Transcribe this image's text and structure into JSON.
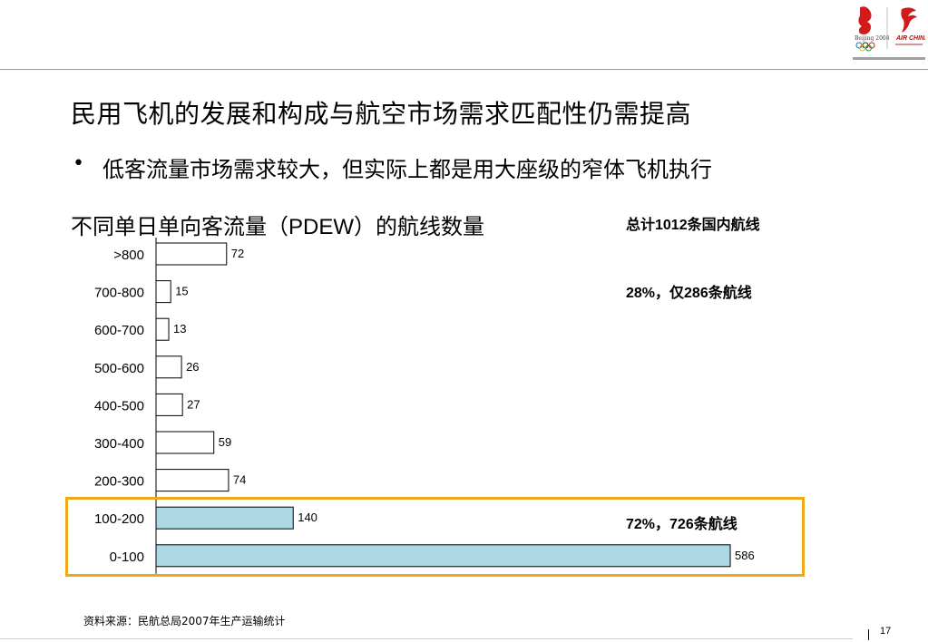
{
  "slide": {
    "title": "民用飞机的发展和构成与航空市场需求匹配性仍需提高",
    "bullet": "低客流量市场需求较大，但实际上都是用大座级的窄体飞机执行",
    "chart_title_prefix": "不同单日单向客流量（",
    "chart_title_abbr": "PDEW",
    "chart_title_suffix": "）的航线数量",
    "note_total": "总计1012条国内航线",
    "note_28": "28%，仅286条航线",
    "note_72": "72%，726条航线",
    "source": "资料来源：民航总局2007年生产运输统计",
    "page_number": "17",
    "logos": {
      "left_logo": "beijing-2008-olympic-emblem",
      "left_logo_text": "Beijing 2008",
      "right_logo": "air-china-phoenix-logo",
      "right_logo_text": "AIR CHINA"
    }
  },
  "chart_data": {
    "type": "bar",
    "orientation": "horizontal",
    "categories": [
      ">800",
      "700-800",
      "600-700",
      "500-600",
      "400-500",
      "300-400",
      "200-300",
      "100-200",
      "0-100"
    ],
    "values": [
      72,
      15,
      13,
      26,
      27,
      59,
      74,
      140,
      586
    ],
    "highlighted_categories": [
      "100-200",
      "0-100"
    ],
    "colors": {
      "default_fill": "#ffffff",
      "highlight_fill": "#add8e6",
      "bar_stroke": "#000000",
      "highlight_box": "#f0a818"
    },
    "title": "不同单日单向客流量（PDEW）的航线数量",
    "xlabel": "",
    "ylabel": "",
    "xlim": [
      0,
      586
    ],
    "grid": false,
    "legend": "none"
  }
}
